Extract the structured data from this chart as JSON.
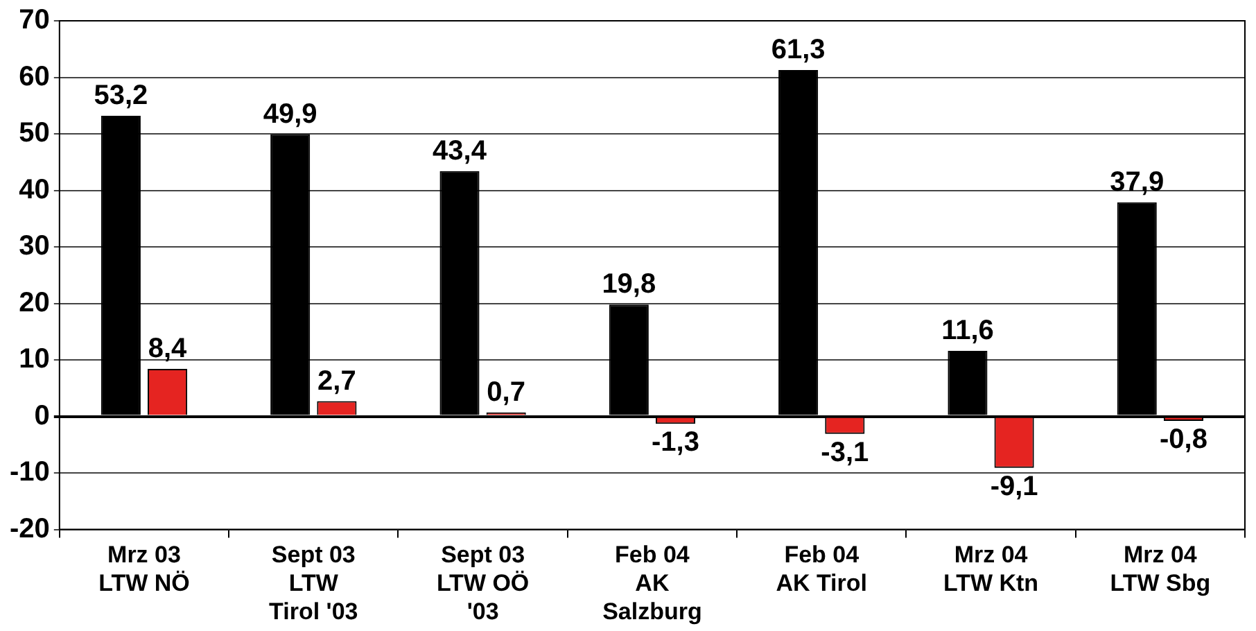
{
  "chart_data": {
    "type": "bar",
    "categories": [
      "Mrz 03\nLTW NÖ",
      "Sept 03\nLTW\nTirol '03",
      "Sept 03\nLTW OÖ\n'03",
      "Feb 04\nAK\nSalzburg",
      "Feb 04\nAK Tirol",
      "Mrz 04\nLTW Ktn",
      "Mrz 04\nLTW Sbg"
    ],
    "series": [
      {
        "color": "#000000",
        "values": [
          53.2,
          49.9,
          43.4,
          19.8,
          61.3,
          11.6,
          37.9
        ],
        "value_labels": [
          "53,2",
          "49,9",
          "43,4",
          "19,8",
          "61,3",
          "11,6",
          "37,9"
        ]
      },
      {
        "color": "#e52421",
        "values": [
          8.4,
          2.7,
          0.7,
          -1.3,
          -3.1,
          -9.1,
          -0.8
        ],
        "value_labels": [
          "8,4",
          "2,7",
          "0,7",
          "-1,3",
          "-3,1",
          "-9,1",
          "-0,8"
        ]
      }
    ],
    "ylim": [
      -20,
      70
    ],
    "yticks": [
      -20,
      -10,
      0,
      10,
      20,
      30,
      40,
      50,
      60,
      70
    ],
    "grid": "y",
    "legend": false
  }
}
